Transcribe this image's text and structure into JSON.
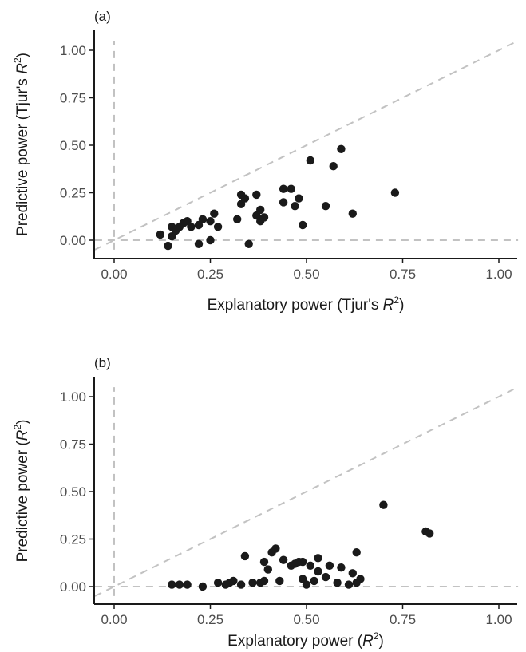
{
  "chart_data": [
    {
      "type": "scatter",
      "panel_label": "(a)",
      "xlabel_main": "Explanatory power (Tjur's ",
      "xlabel_var": "R",
      "xlabel_sup": "2",
      "xlabel_end": ")",
      "ylabel_main": "Predictive power (Tjur's ",
      "ylabel_var": "R",
      "ylabel_sup": "2",
      "ylabel_end": ")",
      "xlim": [
        -0.05,
        1.05
      ],
      "ylim": [
        -0.05,
        1.05
      ],
      "xticks": [
        "0.00",
        "0.25",
        "0.50",
        "0.75",
        "1.00"
      ],
      "yticks": [
        "0.00",
        "0.25",
        "0.50",
        "0.75",
        "1.00"
      ],
      "reference_lines": [
        "x=0",
        "y=0",
        "y=x"
      ],
      "grid": false,
      "points": [
        {
          "x": 0.12,
          "y": 0.03
        },
        {
          "x": 0.14,
          "y": -0.03
        },
        {
          "x": 0.15,
          "y": 0.02
        },
        {
          "x": 0.15,
          "y": 0.07
        },
        {
          "x": 0.16,
          "y": 0.05
        },
        {
          "x": 0.17,
          "y": 0.07
        },
        {
          "x": 0.18,
          "y": 0.09
        },
        {
          "x": 0.19,
          "y": 0.1
        },
        {
          "x": 0.2,
          "y": 0.07
        },
        {
          "x": 0.22,
          "y": -0.02
        },
        {
          "x": 0.22,
          "y": 0.08
        },
        {
          "x": 0.23,
          "y": 0.11
        },
        {
          "x": 0.25,
          "y": 0.0
        },
        {
          "x": 0.25,
          "y": 0.1
        },
        {
          "x": 0.26,
          "y": 0.14
        },
        {
          "x": 0.27,
          "y": 0.07
        },
        {
          "x": 0.32,
          "y": 0.11
        },
        {
          "x": 0.33,
          "y": 0.19
        },
        {
          "x": 0.33,
          "y": 0.24
        },
        {
          "x": 0.34,
          "y": 0.22
        },
        {
          "x": 0.35,
          "y": -0.02
        },
        {
          "x": 0.37,
          "y": 0.13
        },
        {
          "x": 0.37,
          "y": 0.24
        },
        {
          "x": 0.38,
          "y": 0.1
        },
        {
          "x": 0.38,
          "y": 0.16
        },
        {
          "x": 0.39,
          "y": 0.12
        },
        {
          "x": 0.44,
          "y": 0.2
        },
        {
          "x": 0.44,
          "y": 0.27
        },
        {
          "x": 0.46,
          "y": 0.27
        },
        {
          "x": 0.47,
          "y": 0.18
        },
        {
          "x": 0.48,
          "y": 0.22
        },
        {
          "x": 0.49,
          "y": 0.08
        },
        {
          "x": 0.51,
          "y": 0.42
        },
        {
          "x": 0.55,
          "y": 0.18
        },
        {
          "x": 0.57,
          "y": 0.39
        },
        {
          "x": 0.59,
          "y": 0.48
        },
        {
          "x": 0.62,
          "y": 0.14
        },
        {
          "x": 0.73,
          "y": 0.25
        }
      ]
    },
    {
      "type": "scatter",
      "panel_label": "(b)",
      "xlabel_main": "Explanatory power (",
      "xlabel_var": "R",
      "xlabel_sup": "2",
      "xlabel_end": ")",
      "ylabel_main": "Predictive power (",
      "ylabel_var": "R",
      "ylabel_sup": "2",
      "ylabel_end": ")",
      "xlim": [
        -0.05,
        1.05
      ],
      "ylim": [
        -0.05,
        1.05
      ],
      "xticks": [
        "0.00",
        "0.25",
        "0.50",
        "0.75",
        "1.00"
      ],
      "yticks": [
        "0.00",
        "0.25",
        "0.50",
        "0.75",
        "1.00"
      ],
      "reference_lines": [
        "x=0",
        "y=0",
        "y=x"
      ],
      "grid": false,
      "points": [
        {
          "x": 0.15,
          "y": 0.01
        },
        {
          "x": 0.17,
          "y": 0.01
        },
        {
          "x": 0.19,
          "y": 0.01
        },
        {
          "x": 0.23,
          "y": 0.0
        },
        {
          "x": 0.27,
          "y": 0.02
        },
        {
          "x": 0.29,
          "y": 0.01
        },
        {
          "x": 0.3,
          "y": 0.02
        },
        {
          "x": 0.31,
          "y": 0.03
        },
        {
          "x": 0.33,
          "y": 0.01
        },
        {
          "x": 0.34,
          "y": 0.16
        },
        {
          "x": 0.36,
          "y": 0.02
        },
        {
          "x": 0.38,
          "y": 0.02
        },
        {
          "x": 0.39,
          "y": 0.13
        },
        {
          "x": 0.39,
          "y": 0.03
        },
        {
          "x": 0.4,
          "y": 0.09
        },
        {
          "x": 0.41,
          "y": 0.18
        },
        {
          "x": 0.42,
          "y": 0.2
        },
        {
          "x": 0.43,
          "y": 0.03
        },
        {
          "x": 0.44,
          "y": 0.14
        },
        {
          "x": 0.46,
          "y": 0.11
        },
        {
          "x": 0.47,
          "y": 0.12
        },
        {
          "x": 0.48,
          "y": 0.13
        },
        {
          "x": 0.49,
          "y": 0.04
        },
        {
          "x": 0.49,
          "y": 0.13
        },
        {
          "x": 0.5,
          "y": 0.01
        },
        {
          "x": 0.51,
          "y": 0.11
        },
        {
          "x": 0.52,
          "y": 0.03
        },
        {
          "x": 0.53,
          "y": 0.15
        },
        {
          "x": 0.53,
          "y": 0.08
        },
        {
          "x": 0.55,
          "y": 0.05
        },
        {
          "x": 0.56,
          "y": 0.11
        },
        {
          "x": 0.58,
          "y": 0.02
        },
        {
          "x": 0.59,
          "y": 0.1
        },
        {
          "x": 0.61,
          "y": 0.01
        },
        {
          "x": 0.62,
          "y": 0.07
        },
        {
          "x": 0.63,
          "y": 0.18
        },
        {
          "x": 0.64,
          "y": 0.04
        },
        {
          "x": 0.63,
          "y": 0.02
        },
        {
          "x": 0.7,
          "y": 0.43
        },
        {
          "x": 0.81,
          "y": 0.29
        },
        {
          "x": 0.82,
          "y": 0.28
        }
      ]
    }
  ]
}
